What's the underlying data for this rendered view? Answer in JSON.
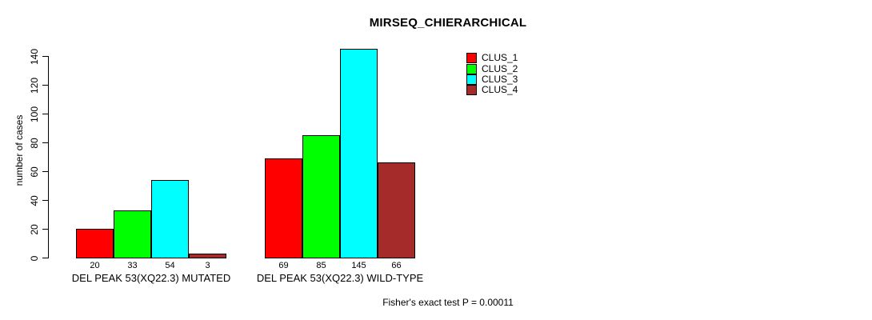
{
  "title": "MIRSEQ_CHIERARCHICAL",
  "footnote": "Fisher's exact test P = 0.00011",
  "chart_data": {
    "type": "bar",
    "title": "MIRSEQ_CHIERARCHICAL",
    "ylabel": "number of cases",
    "xlabel": "",
    "ylim": [
      0,
      140
    ],
    "yticks": [
      0,
      20,
      40,
      60,
      80,
      100,
      120,
      140
    ],
    "grid": false,
    "legend_position": "top-right",
    "categories": [
      "DEL PEAK 53(XQ22.3) MUTATED",
      "DEL PEAK 53(XQ22.3) WILD-TYPE"
    ],
    "series": [
      {
        "name": "CLUS_1",
        "color": "#ff0000",
        "values": [
          20,
          69
        ]
      },
      {
        "name": "CLUS_2",
        "color": "#00ff00",
        "values": [
          33,
          85
        ]
      },
      {
        "name": "CLUS_3",
        "color": "#00ffff",
        "values": [
          54,
          145
        ]
      },
      {
        "name": "CLUS_4",
        "color": "#a52a2a",
        "values": [
          3,
          66
        ]
      }
    ],
    "bar_value_labels": [
      [
        20,
        33,
        54,
        3
      ],
      [
        69,
        85,
        145,
        66
      ]
    ],
    "annotation": "Fisher's exact test P = 0.00011"
  }
}
